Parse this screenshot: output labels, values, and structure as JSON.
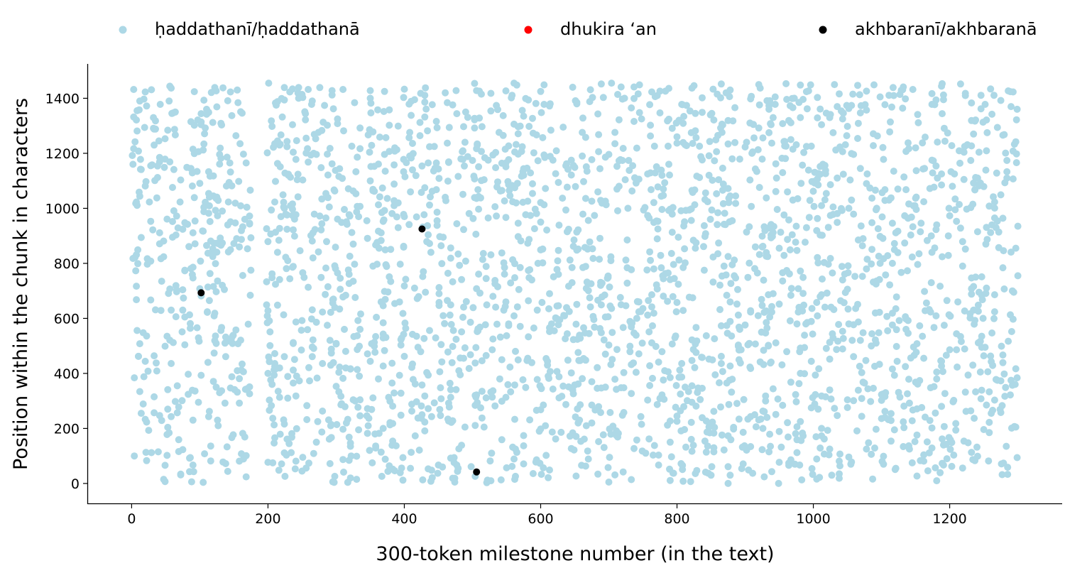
{
  "chart_data": {
    "type": "scatter",
    "title": "",
    "xlabel": "300-token milestone number (in the text)",
    "ylabel": "Position within the chunk in characters",
    "xlim": [
      -65,
      1365
    ],
    "ylim": [
      -75,
      1525
    ],
    "xticks": [
      0,
      200,
      400,
      600,
      800,
      1000,
      1200
    ],
    "yticks": [
      0,
      200,
      400,
      600,
      800,
      1000,
      1200,
      1400
    ],
    "grid": false,
    "legend_position": "top",
    "series": [
      {
        "name": "ḥaddathanī/ḥaddathanā",
        "color": "#add8e6",
        "generated_density": true,
        "n_points": 2800,
        "x_range": [
          0,
          1300
        ],
        "y_range": [
          0,
          1455
        ],
        "x_gaps": [
          [
            176,
            198
          ],
          [
            336,
            345
          ]
        ],
        "points": []
      },
      {
        "name": "dhukira ‘an",
        "color": "#ff0000",
        "points": []
      },
      {
        "name": "akhbaranī/akhbaranā",
        "color": "#000000",
        "points": [
          [
            102,
            693
          ],
          [
            426,
            925
          ],
          [
            506,
            42
          ]
        ]
      }
    ]
  }
}
